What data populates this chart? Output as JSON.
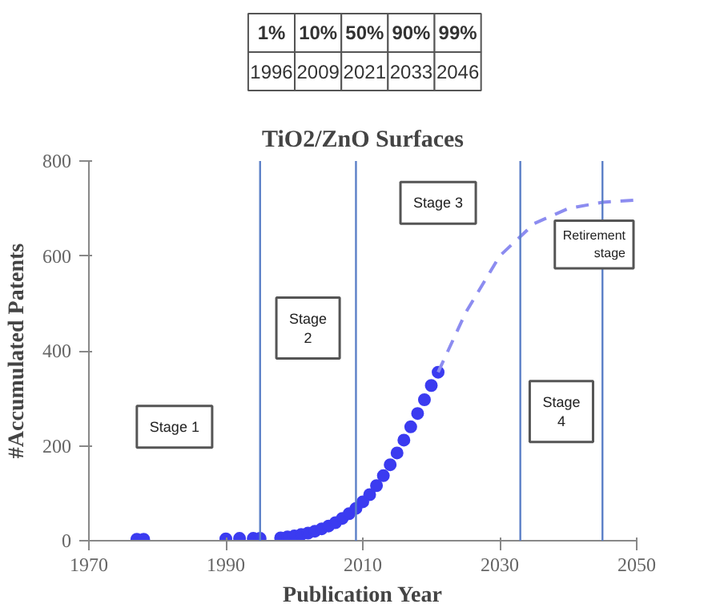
{
  "chart_data": {
    "type": "scatter",
    "title": "TiO2/ZnO Surfaces",
    "xlabel": "Publication Year",
    "ylabel": "#Accumulated Patents",
    "xlim": [
      1970,
      2050
    ],
    "xticks": [
      1970,
      1990,
      2010,
      2030,
      2050
    ],
    "ylim": [
      0,
      800
    ],
    "yticks": [
      0,
      200,
      400,
      600,
      800
    ],
    "grid": false,
    "series": [
      {
        "color": "#3b3bf0",
        "marker": "circle",
        "x": [
          1977,
          1978,
          1990,
          1992,
          1994,
          1995,
          1998,
          1999,
          2000,
          2001,
          2002,
          2003,
          2004,
          2005,
          2006,
          2007,
          2008,
          2009,
          2010,
          2011,
          2012,
          2013,
          2014,
          2015,
          2016,
          2017,
          2018,
          2019,
          2020,
          2021
        ],
        "values": [
          3,
          3,
          4,
          5,
          5,
          5,
          6,
          8,
          10,
          13,
          16,
          20,
          25,
          31,
          38,
          47,
          57,
          68,
          82,
          97,
          116,
          137,
          160,
          185,
          212,
          240,
          268,
          297,
          327,
          355
        ]
      },
      {
        "type": "line",
        "color": "#8c8cf0",
        "line_style": "dashed",
        "x": [
          2021,
          2025,
          2030,
          2035,
          2040,
          2045,
          2050
        ],
        "values": [
          355,
          480,
          600,
          668,
          700,
          713,
          718
        ]
      }
    ],
    "ref_lines": [
      {
        "axis": "x",
        "value": 1995,
        "color": "#5b7fc7"
      },
      {
        "axis": "x",
        "value": 2009,
        "color": "#5b7fc7"
      },
      {
        "axis": "x",
        "value": 2033,
        "color": "#5b7fc7"
      },
      {
        "axis": "x",
        "value": 2045,
        "color": "#5b7fc7"
      }
    ],
    "annotations": [
      "1%",
      "10%",
      "50%",
      "90%",
      "99%",
      "1996",
      "2009",
      "2021",
      "2033",
      "2046",
      "Stage 1",
      "Stage\n2",
      "Stage 3",
      "Stage\n4",
      "Retirement\nstage"
    ]
  }
}
